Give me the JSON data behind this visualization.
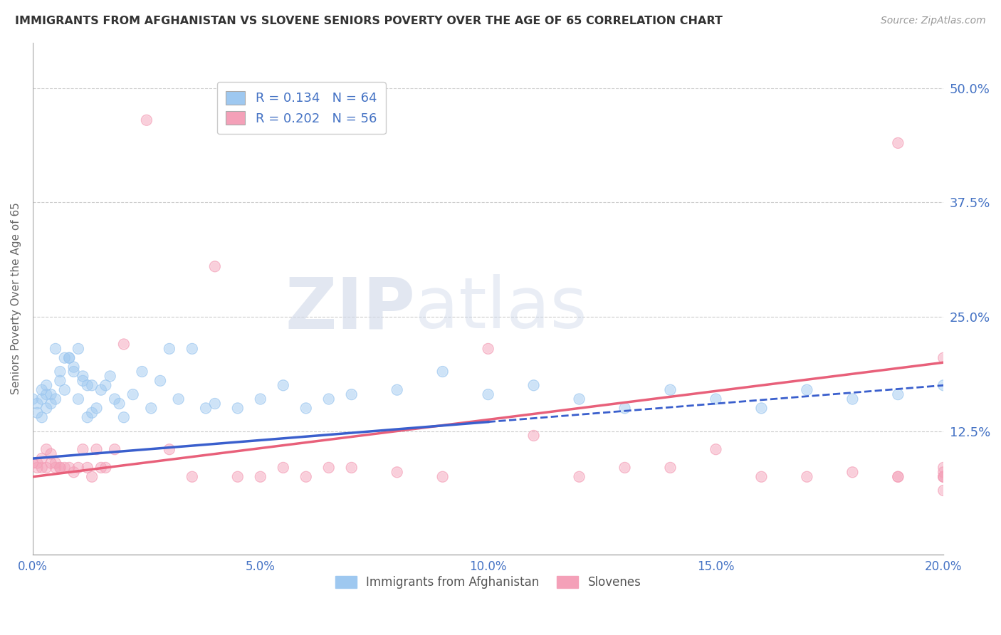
{
  "title": "IMMIGRANTS FROM AFGHANISTAN VS SLOVENE SENIORS POVERTY OVER THE AGE OF 65 CORRELATION CHART",
  "source": "Source: ZipAtlas.com",
  "ylabel": "Seniors Poverty Over the Age of 65",
  "legend_label_blue": "Immigrants from Afghanistan",
  "legend_label_pink": "Slovenes",
  "R_blue": 0.134,
  "N_blue": 64,
  "R_pink": 0.202,
  "N_pink": 56,
  "color_blue": "#9EC8F0",
  "color_pink": "#F4A0B8",
  "color_line_blue": "#3A5FCD",
  "color_line_pink": "#E8607A",
  "color_text_blue": "#4472C4",
  "xlim": [
    0.0,
    0.2
  ],
  "ylim": [
    -0.01,
    0.55
  ],
  "yticks": [
    0.125,
    0.25,
    0.375,
    0.5
  ],
  "ytick_labels": [
    "12.5%",
    "25.0%",
    "37.5%",
    "50.0%"
  ],
  "xticks": [
    0.0,
    0.05,
    0.1,
    0.15,
    0.2
  ],
  "xtick_labels": [
    "0.0%",
    "5.0%",
    "10.0%",
    "15.0%",
    "20.0%"
  ],
  "watermark_zip": "ZIP",
  "watermark_atlas": "atlas",
  "background_color": "#FFFFFF",
  "grid_color": "#CCCCCC",
  "blue_line_solid_end": 0.1,
  "blue_line_start_y": 0.095,
  "blue_line_end_y": 0.175,
  "pink_line_start_y": 0.075,
  "pink_line_end_y": 0.2,
  "blue_x": [
    0.0,
    0.001,
    0.001,
    0.002,
    0.002,
    0.002,
    0.003,
    0.003,
    0.003,
    0.004,
    0.004,
    0.005,
    0.005,
    0.006,
    0.006,
    0.007,
    0.007,
    0.008,
    0.008,
    0.009,
    0.009,
    0.01,
    0.01,
    0.011,
    0.011,
    0.012,
    0.012,
    0.013,
    0.013,
    0.014,
    0.015,
    0.016,
    0.017,
    0.018,
    0.019,
    0.02,
    0.022,
    0.024,
    0.026,
    0.028,
    0.03,
    0.032,
    0.035,
    0.038,
    0.04,
    0.045,
    0.05,
    0.055,
    0.06,
    0.065,
    0.07,
    0.08,
    0.09,
    0.1,
    0.11,
    0.12,
    0.13,
    0.14,
    0.15,
    0.16,
    0.17,
    0.18,
    0.19,
    0.2
  ],
  "blue_y": [
    0.16,
    0.145,
    0.155,
    0.17,
    0.14,
    0.16,
    0.175,
    0.165,
    0.15,
    0.165,
    0.155,
    0.16,
    0.215,
    0.18,
    0.19,
    0.205,
    0.17,
    0.205,
    0.205,
    0.195,
    0.19,
    0.16,
    0.215,
    0.18,
    0.185,
    0.14,
    0.175,
    0.145,
    0.175,
    0.15,
    0.17,
    0.175,
    0.185,
    0.16,
    0.155,
    0.14,
    0.165,
    0.19,
    0.15,
    0.18,
    0.215,
    0.16,
    0.215,
    0.15,
    0.155,
    0.15,
    0.16,
    0.175,
    0.15,
    0.16,
    0.165,
    0.17,
    0.19,
    0.165,
    0.175,
    0.16,
    0.15,
    0.17,
    0.16,
    0.15,
    0.17,
    0.16,
    0.165,
    0.175
  ],
  "pink_x": [
    0.0,
    0.001,
    0.001,
    0.002,
    0.002,
    0.003,
    0.003,
    0.004,
    0.004,
    0.005,
    0.005,
    0.006,
    0.006,
    0.007,
    0.008,
    0.009,
    0.01,
    0.011,
    0.012,
    0.013,
    0.014,
    0.015,
    0.016,
    0.018,
    0.02,
    0.025,
    0.03,
    0.035,
    0.04,
    0.045,
    0.05,
    0.055,
    0.06,
    0.065,
    0.07,
    0.08,
    0.09,
    0.1,
    0.11,
    0.12,
    0.13,
    0.14,
    0.15,
    0.16,
    0.17,
    0.18,
    0.19,
    0.19,
    0.19,
    0.2,
    0.2,
    0.2,
    0.2,
    0.2,
    0.2,
    0.2
  ],
  "pink_y": [
    0.09,
    0.085,
    0.09,
    0.095,
    0.085,
    0.105,
    0.085,
    0.09,
    0.1,
    0.085,
    0.09,
    0.085,
    0.085,
    0.085,
    0.085,
    0.08,
    0.085,
    0.105,
    0.085,
    0.075,
    0.105,
    0.085,
    0.085,
    0.105,
    0.22,
    0.465,
    0.105,
    0.075,
    0.305,
    0.075,
    0.075,
    0.085,
    0.075,
    0.085,
    0.085,
    0.08,
    0.075,
    0.215,
    0.12,
    0.075,
    0.085,
    0.085,
    0.105,
    0.075,
    0.075,
    0.08,
    0.44,
    0.075,
    0.075,
    0.08,
    0.075,
    0.085,
    0.075,
    0.205,
    0.075,
    0.06
  ]
}
